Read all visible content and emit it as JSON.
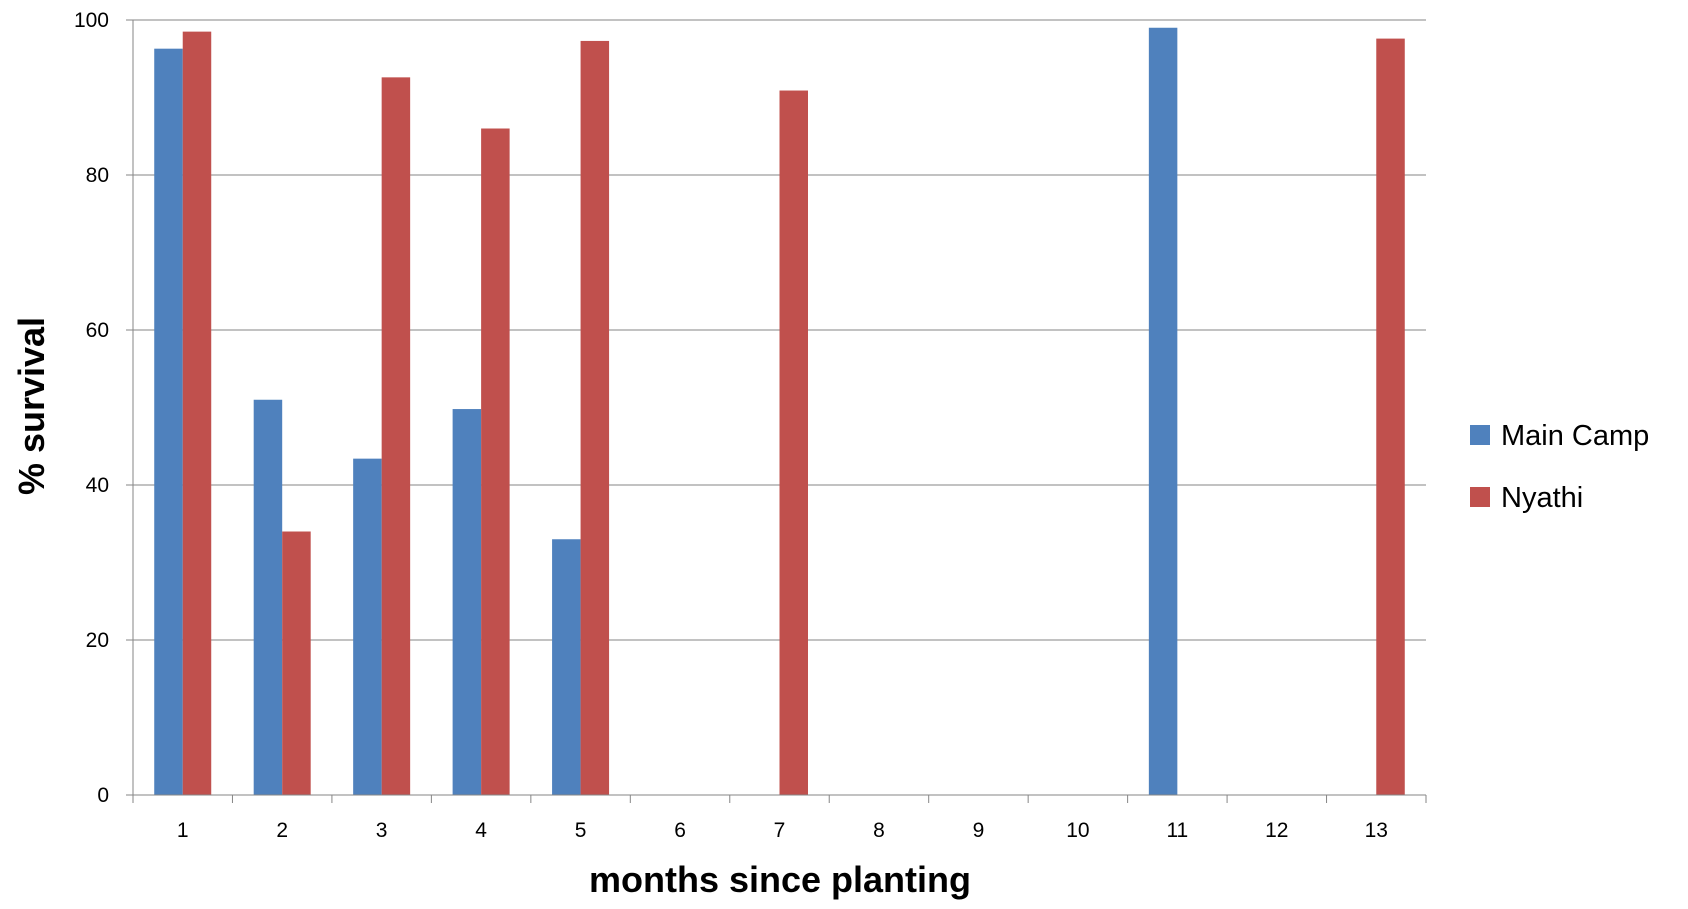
{
  "chart_data": {
    "type": "bar",
    "title": "",
    "xlabel": "months since planting",
    "ylabel": "% survival",
    "categories": [
      "1",
      "2",
      "3",
      "4",
      "5",
      "6",
      "7",
      "8",
      "9",
      "10",
      "11",
      "12",
      "13"
    ],
    "yticks": [
      "0",
      "20",
      "40",
      "60",
      "80",
      "100"
    ],
    "ylim": [
      0,
      100
    ],
    "grid": "horizontal",
    "legend_position": "right",
    "series": [
      {
        "name": "Main Camp",
        "color": "#4F81BD",
        "values": [
          96.3,
          51,
          43.4,
          49.8,
          33,
          null,
          null,
          null,
          null,
          null,
          99,
          null,
          null
        ]
      },
      {
        "name": "Nyathi",
        "color": "#C0504D",
        "values": [
          98.5,
          34,
          92.6,
          86,
          97.3,
          null,
          90.9,
          null,
          null,
          null,
          null,
          null,
          97.6
        ]
      }
    ]
  }
}
